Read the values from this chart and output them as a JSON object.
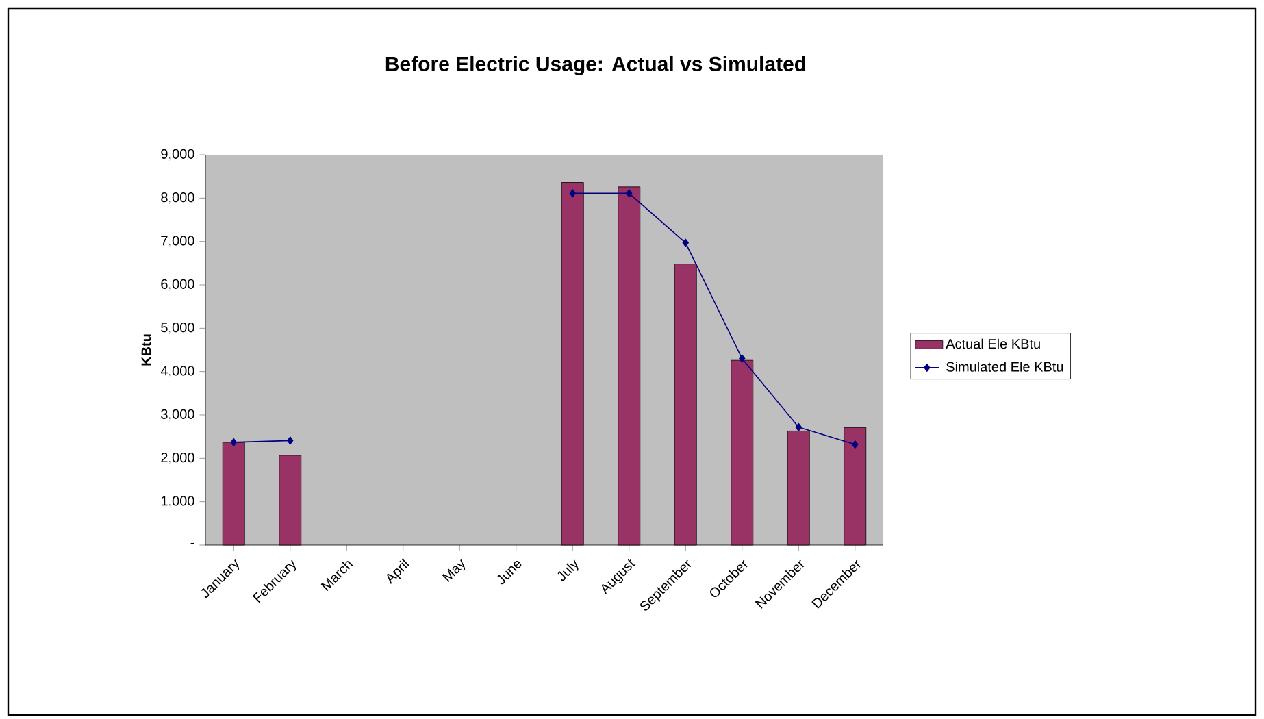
{
  "chart_data": {
    "type": "bar",
    "title": "Before Electric Usage: Actual vs Simulated",
    "ylabel": "KBtu",
    "categories": [
      "January",
      "February",
      "March",
      "April",
      "May",
      "June",
      "July",
      "August",
      "September",
      "October",
      "November",
      "December"
    ],
    "series": [
      {
        "name": "Actual Ele KBtu",
        "color": "#993366",
        "values": [
          2370,
          2070,
          null,
          null,
          null,
          null,
          8360,
          8260,
          6480,
          4260,
          2630,
          2710
        ]
      },
      {
        "name": "Simulated Ele KBtu",
        "type": "line",
        "color": "#000080",
        "values": [
          2370,
          2410,
          null,
          null,
          null,
          null,
          8110,
          8110,
          6970,
          4300,
          2720,
          2320
        ]
      }
    ],
    "ylim": [
      0,
      9000
    ],
    "yticks": [
      {
        "value": 0,
        "label": "-"
      },
      {
        "value": 1000,
        "label": "1,000"
      },
      {
        "value": 2000,
        "label": "2,000"
      },
      {
        "value": 3000,
        "label": "3,000"
      },
      {
        "value": 4000,
        "label": "4,000"
      },
      {
        "value": 5000,
        "label": "5,000"
      },
      {
        "value": 6000,
        "label": "6,000"
      },
      {
        "value": 7000,
        "label": "7,000"
      },
      {
        "value": 8000,
        "label": "8,000"
      },
      {
        "value": 9000,
        "label": "9,000"
      }
    ],
    "legend": "right",
    "marker": "diamond",
    "grid": false
  }
}
